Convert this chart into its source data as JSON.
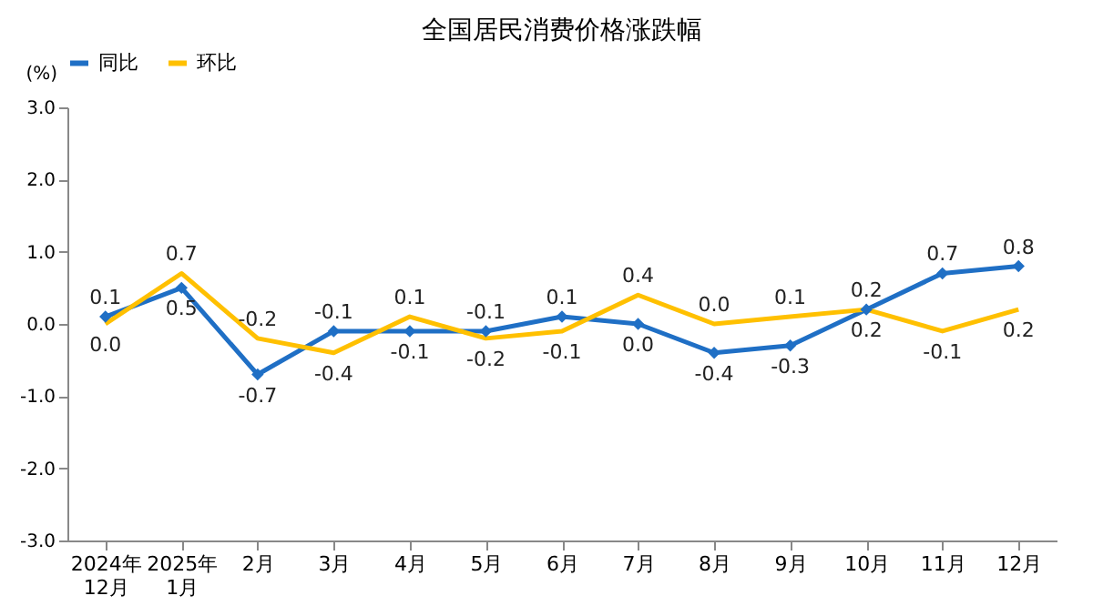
{
  "chart_data": {
    "type": "line",
    "title": "全国居民消费价格涨跌幅",
    "ylabel": "(%)",
    "categories": [
      "2024年\n12月",
      "2025年\n1月",
      "2月",
      "3月",
      "4月",
      "5月",
      "6月",
      "7月",
      "8月",
      "9月",
      "10月",
      "11月",
      "12月"
    ],
    "series": [
      {
        "name": "同比",
        "color": "#1f6fc5",
        "marker": "diamond",
        "values": [
          0.1,
          0.5,
          -0.7,
          -0.1,
          -0.1,
          -0.1,
          0.1,
          0.0,
          -0.4,
          -0.3,
          0.2,
          0.7,
          0.8
        ],
        "value_labels": [
          "0.1",
          "0.5",
          "-0.7",
          "-0.1",
          "-0.1",
          "-0.1",
          "0.1",
          "0.0",
          "-0.4",
          "-0.3",
          "0.2",
          "0.7",
          "0.8"
        ]
      },
      {
        "name": "环比",
        "color": "#ffc000",
        "values": [
          0.0,
          0.7,
          -0.2,
          -0.4,
          0.1,
          -0.2,
          -0.1,
          0.4,
          0.0,
          0.1,
          0.2,
          -0.1,
          0.2
        ],
        "value_labels": [
          "0.0",
          "0.7",
          "-0.2",
          "-0.4",
          "0.1",
          "-0.2",
          "-0.1",
          "0.4",
          "0.0",
          "0.1",
          "0.2",
          "-0.1",
          "0.2"
        ]
      }
    ],
    "ylim": [
      -3,
      3
    ],
    "yticks": [
      {
        "value": -3,
        "label": "-3.0"
      },
      {
        "value": -2,
        "label": "-2.0"
      },
      {
        "value": -1,
        "label": "-1.0"
      },
      {
        "value": 0,
        "label": "0.0"
      },
      {
        "value": 1,
        "label": "1.0"
      },
      {
        "value": 2,
        "label": "2.0"
      },
      {
        "value": 3,
        "label": "3.0"
      }
    ],
    "grid": false,
    "legend": "top",
    "line_style": "solid"
  }
}
